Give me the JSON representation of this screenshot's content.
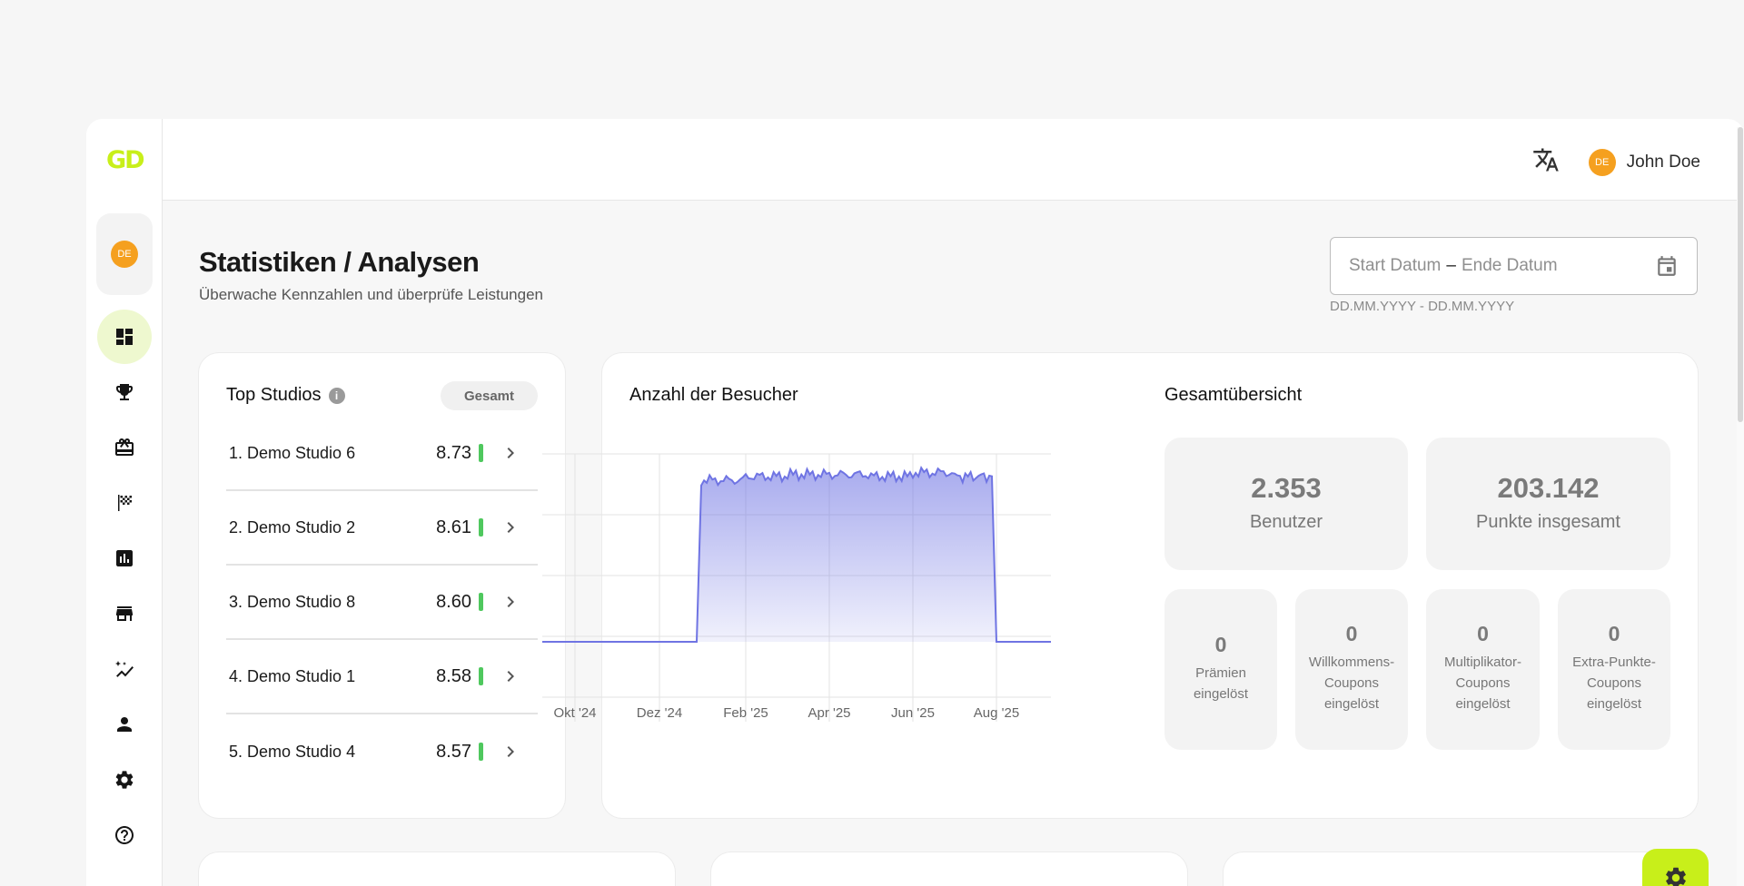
{
  "app": {
    "logo": "GD",
    "language_badge": "DE"
  },
  "user": {
    "name": "John Doe",
    "avatar": "DE"
  },
  "page": {
    "title": "Statistiken / Analysen",
    "subtitle": "Überwache Kennzahlen und überprüfe Leistungen"
  },
  "date_range": {
    "start_placeholder": "Start Datum",
    "separator": "–",
    "end_placeholder": "Ende Datum",
    "hint": "DD.MM.YYYY - DD.MM.YYYY"
  },
  "sidebar": {
    "items": [
      {
        "name": "dashboard",
        "active": true
      },
      {
        "name": "trophy"
      },
      {
        "name": "gift-card"
      },
      {
        "name": "flag-checkered"
      },
      {
        "name": "bar-chart"
      },
      {
        "name": "store"
      },
      {
        "name": "magic-trend"
      },
      {
        "name": "person"
      },
      {
        "name": "settings"
      },
      {
        "name": "help"
      }
    ]
  },
  "top_studios": {
    "title": "Top Studios",
    "filter": "Gesamt",
    "rows": [
      {
        "name": "1. Demo Studio 6",
        "score": "8.73"
      },
      {
        "name": "2. Demo Studio 2",
        "score": "8.61"
      },
      {
        "name": "3. Demo Studio 8",
        "score": "8.60"
      },
      {
        "name": "4. Demo Studio 1",
        "score": "8.58"
      },
      {
        "name": "5. Demo Studio 4",
        "score": "8.57"
      }
    ]
  },
  "visitors": {
    "title": "Anzahl der Besucher"
  },
  "overview": {
    "title": "Gesamtübersicht",
    "users": {
      "value": "2.353",
      "label": "Benutzer"
    },
    "points": {
      "value": "203.142",
      "label": "Punkte insgesamt"
    },
    "small": [
      {
        "value": "0",
        "line1": "Prämien",
        "line2": "eingelöst",
        "line3": ""
      },
      {
        "value": "0",
        "line1": "Willkommens-",
        "line2": "Coupons",
        "line3": "eingelöst"
      },
      {
        "value": "0",
        "line1": "Multiplikator-",
        "line2": "Coupons",
        "line3": "eingelöst"
      },
      {
        "value": "0",
        "line1": "Extra-Punkte-",
        "line2": "Coupons",
        "line3": "eingelöst"
      }
    ]
  },
  "chart_data": {
    "type": "area",
    "title": "Anzahl der Besucher",
    "xlabel": "",
    "ylabel": "",
    "x_ticks": [
      "Okt '24",
      "Dez '24",
      "Feb '25",
      "Apr '25",
      "Jun '25",
      "Aug '25"
    ],
    "x": [
      "Sep '24",
      "Okt '24",
      "Nov '24",
      "Dez '24",
      "Jan '25",
      "Jan '25",
      "Feb '25",
      "Mär '25",
      "Apr '25",
      "Mai '25",
      "Jun '25",
      "Jul '25",
      "Aug '25",
      "Aug '25",
      "Sep '25"
    ],
    "series": [
      {
        "values": [
          0,
          0,
          0,
          0,
          0,
          0.86,
          0.88,
          0.89,
          0.89,
          0.88,
          0.9,
          0.88,
          0.89,
          0,
          0
        ]
      }
    ],
    "grid": true,
    "color": "#6f74e3"
  },
  "colors": {
    "accent": "#c8ef1a",
    "avatar": "#f5a01f",
    "score_bar": "#4fc85e",
    "chart_line": "#6f74e3"
  }
}
